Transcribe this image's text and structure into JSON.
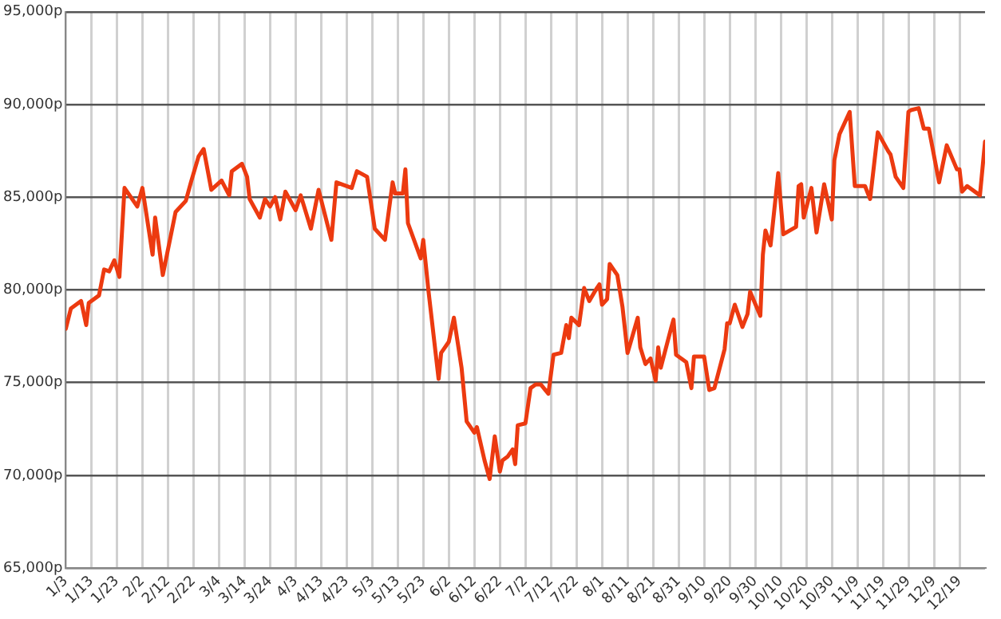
{
  "chart_data": {
    "type": "line",
    "color": "#ec3a10",
    "marker": "none",
    "line_style": "solid",
    "grid": true,
    "legend": false,
    "x": [
      "--01-03",
      "--01-05",
      "--01-07",
      "--01-09",
      "--01-11",
      "--01-12",
      "--01-16",
      "--01-18",
      "--01-20",
      "--01-22",
      "--01-24",
      "--01-26",
      "--01-31",
      "--02-02",
      "--02-06",
      "--02-07",
      "--02-10",
      "--02-15",
      "--02-19",
      "--02-21",
      "--02-24",
      "--02-26",
      "--03-01",
      "--03-05",
      "--03-08",
      "--03-09",
      "--03-13",
      "--03-15",
      "--03-16",
      "--03-20",
      "--03-22",
      "--03-24",
      "--03-26",
      "--03-28",
      "--03-30",
      "--04-03",
      "--04-05",
      "--04-09",
      "--04-12",
      "--04-17",
      "--04-19",
      "--04-25",
      "--04-27",
      "--05-01",
      "--05-04",
      "--05-08",
      "--05-11",
      "--05-12",
      "--05-15",
      "--05-16",
      "--05-17",
      "--05-22",
      "--05-23",
      "--05-25",
      "--05-29",
      "--05-30",
      "--06-02",
      "--06-04",
      "--06-07",
      "--06-09",
      "--06-12",
      "--06-13",
      "--06-16",
      "--06-18",
      "--06-20",
      "--06-22",
      "--06-23",
      "--06-25",
      "--06-27",
      "--06-28",
      "--06-29",
      "--07-02",
      "--07-04",
      "--07-06",
      "--07-08",
      "--07-11",
      "--07-13",
      "--07-16",
      "--07-18",
      "--07-19",
      "--07-20",
      "--07-23",
      "--07-25",
      "--07-27",
      "--07-30",
      "--07-31",
      "--08-01",
      "--08-03",
      "--08-04",
      "--08-07",
      "--08-09",
      "--08-11",
      "--08-15",
      "--08-16",
      "--08-18",
      "--08-20",
      "--08-22",
      "--08-23",
      "--08-24",
      "--08-28",
      "--08-29",
      "--08-30",
      "--09-03",
      "--09-05",
      "--09-06",
      "--09-10",
      "--09-12",
      "--09-14",
      "--09-18",
      "--09-19",
      "--09-20",
      "--09-22",
      "--09-25",
      "--09-27",
      "--09-28",
      "--10-02",
      "--10-03",
      "--10-04",
      "--10-06",
      "--10-09",
      "--10-11",
      "--10-16",
      "--10-17",
      "--10-18",
      "--10-19",
      "--10-22",
      "--10-24",
      "--10-27",
      "--10-30",
      "--10-31",
      "--11-02",
      "--11-06",
      "--11-08",
      "--11-12",
      "--11-14",
      "--11-17",
      "--11-21",
      "--11-22",
      "--11-24",
      "--11-27",
      "--11-29",
      "--11-30",
      "--12-03",
      "--12-05",
      "--12-07",
      "--12-11",
      "--12-14",
      "--12-18",
      "--12-19",
      "--12-20",
      "--12-22",
      "--12-27",
      "--12-29"
    ],
    "values": [
      77900,
      79000,
      79200,
      79400,
      78100,
      79300,
      79700,
      81100,
      81000,
      81600,
      80700,
      85500,
      84500,
      85500,
      81900,
      83900,
      80800,
      84200,
      84800,
      85800,
      87200,
      87600,
      85400,
      85900,
      85100,
      86400,
      86800,
      86100,
      84900,
      83900,
      84900,
      84500,
      85000,
      83800,
      85300,
      84300,
      85100,
      83300,
      85400,
      82700,
      85800,
      85500,
      86400,
      86100,
      83300,
      82700,
      85800,
      85200,
      85200,
      86500,
      83600,
      81700,
      82700,
      80000,
      75200,
      76600,
      77200,
      78500,
      75800,
      72900,
      72300,
      72600,
      70800,
      69800,
      72100,
      70200,
      70800,
      71000,
      71400,
      70600,
      72700,
      72800,
      74700,
      74900,
      74900,
      74400,
      76500,
      76600,
      78100,
      77400,
      78500,
      78100,
      80100,
      79400,
      80100,
      80300,
      79200,
      79500,
      81400,
      80800,
      79100,
      76600,
      78500,
      76900,
      76000,
      76300,
      75100,
      76900,
      75800,
      77900,
      78400,
      76500,
      76100,
      74700,
      76400,
      76400,
      74600,
      74700,
      76800,
      78200,
      78200,
      79200,
      78000,
      78700,
      79900,
      78600,
      81900,
      83200,
      82400,
      86300,
      83000,
      83400,
      85600,
      85700,
      83900,
      85500,
      83100,
      85700,
      83800,
      87000,
      88400,
      89600,
      85600,
      85600,
      84900,
      88500,
      87500,
      87300,
      86100,
      85500,
      89600,
      89700,
      89800,
      88700,
      88700,
      85800,
      87800,
      86500,
      86500,
      85300,
      85600,
      85100,
      88000
    ],
    "xlim": [
      "--01-03",
      "--12-29"
    ],
    "xticks": [
      {
        "value": "--01-03",
        "label": "1/3"
      },
      {
        "value": "--01-13",
        "label": "1/13"
      },
      {
        "value": "--01-23",
        "label": "1/23"
      },
      {
        "value": "--02-02",
        "label": "2/2"
      },
      {
        "value": "--02-12",
        "label": "2/12"
      },
      {
        "value": "--02-22",
        "label": "2/22"
      },
      {
        "value": "--03-04",
        "label": "3/4"
      },
      {
        "value": "--03-14",
        "label": "3/14"
      },
      {
        "value": "--03-24",
        "label": "3/24"
      },
      {
        "value": "--04-03",
        "label": "4/3"
      },
      {
        "value": "--04-13",
        "label": "4/13"
      },
      {
        "value": "--04-23",
        "label": "4/23"
      },
      {
        "value": "--05-03",
        "label": "5/3"
      },
      {
        "value": "--05-13",
        "label": "5/13"
      },
      {
        "value": "--05-23",
        "label": "5/23"
      },
      {
        "value": "--06-02",
        "label": "6/2"
      },
      {
        "value": "--06-12",
        "label": "6/12"
      },
      {
        "value": "--06-22",
        "label": "6/22"
      },
      {
        "value": "--07-02",
        "label": "7/2"
      },
      {
        "value": "--07-12",
        "label": "7/12"
      },
      {
        "value": "--07-22",
        "label": "7/22"
      },
      {
        "value": "--08-01",
        "label": "8/1"
      },
      {
        "value": "--08-11",
        "label": "8/11"
      },
      {
        "value": "--08-21",
        "label": "8/21"
      },
      {
        "value": "--08-31",
        "label": "8/31"
      },
      {
        "value": "--09-10",
        "label": "9/10"
      },
      {
        "value": "--09-20",
        "label": "9/20"
      },
      {
        "value": "--09-30",
        "label": "9/30"
      },
      {
        "value": "--10-10",
        "label": "10/10"
      },
      {
        "value": "--10-20",
        "label": "10/20"
      },
      {
        "value": "--10-30",
        "label": "10/30"
      },
      {
        "value": "--11-09",
        "label": "11/9"
      },
      {
        "value": "--11-19",
        "label": "11/19"
      },
      {
        "value": "--11-29",
        "label": "11/29"
      },
      {
        "value": "--12-09",
        "label": "12/9"
      },
      {
        "value": "--12-19",
        "label": "12/19"
      }
    ],
    "ylim": [
      65000,
      95000
    ],
    "yticks": [
      {
        "value": 65000,
        "label": "65,000p"
      },
      {
        "value": 70000,
        "label": "70,000p"
      },
      {
        "value": 75000,
        "label": "75,000p"
      },
      {
        "value": 80000,
        "label": "80,000p"
      },
      {
        "value": 85000,
        "label": "85,000p"
      },
      {
        "value": 90000,
        "label": "90,000p"
      },
      {
        "value": 95000,
        "label": "95,000p"
      }
    ]
  }
}
